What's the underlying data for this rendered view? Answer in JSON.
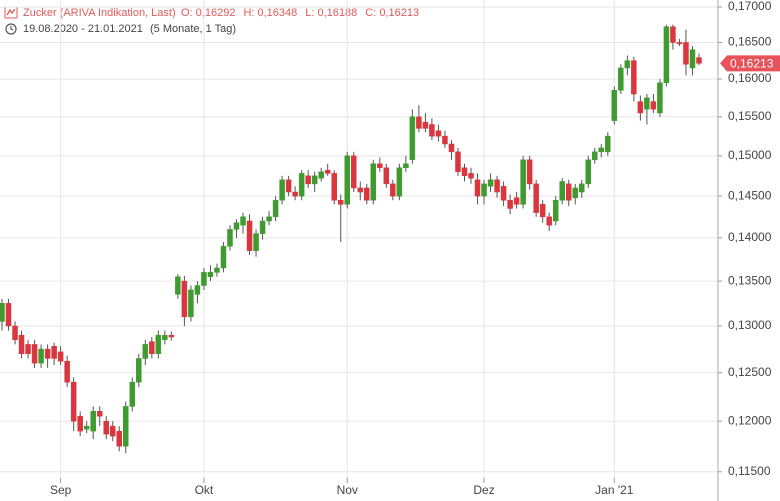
{
  "chart_data": {
    "type": "candlestick",
    "title": "Zucker (ARIVA Indikation, Last)",
    "ohlc_text": [
      "O: 0,16292",
      "H: 0,16348",
      "L: 0,16188",
      "C: 0,16213"
    ],
    "date_range": "19.08.2020 - 21.01.2021",
    "period": "(5 Monate, 1 Tag)",
    "log_scale": true,
    "grid": true,
    "up_color": "#3f9b2f",
    "down_color": "#d9363e",
    "ylim": [
      0.1144,
      0.171
    ],
    "yticks": [
      {
        "value": 0.115,
        "label": "0,11500"
      },
      {
        "value": 0.12,
        "label": "0,12000"
      },
      {
        "value": 0.125,
        "label": "0,12500"
      },
      {
        "value": 0.13,
        "label": "0,13000"
      },
      {
        "value": 0.135,
        "label": "0,13500"
      },
      {
        "value": 0.14,
        "label": "0,14000"
      },
      {
        "value": 0.145,
        "label": "0,14500"
      },
      {
        "value": 0.15,
        "label": "0,15000"
      },
      {
        "value": 0.155,
        "label": "0,15500"
      },
      {
        "value": 0.16,
        "label": "0,16000"
      },
      {
        "value": 0.165,
        "label": "0,16500"
      },
      {
        "value": 0.17,
        "label": "0,17000"
      }
    ],
    "last_price": {
      "value": 0.16213,
      "label": "0,16213"
    },
    "categories": [
      null,
      null,
      null,
      null,
      null,
      null,
      null,
      null,
      null,
      "Sep",
      null,
      null,
      null,
      null,
      null,
      null,
      null,
      null,
      null,
      null,
      null,
      null,
      null,
      null,
      null,
      null,
      null,
      null,
      null,
      null,
      null,
      "Okt",
      null,
      null,
      null,
      null,
      null,
      null,
      null,
      null,
      null,
      null,
      null,
      null,
      null,
      null,
      null,
      null,
      null,
      null,
      null,
      null,
      null,
      "Nov",
      null,
      null,
      null,
      null,
      null,
      null,
      null,
      null,
      null,
      null,
      null,
      null,
      null,
      null,
      null,
      null,
      null,
      null,
      null,
      null,
      "Dez",
      null,
      null,
      null,
      null,
      null,
      null,
      null,
      null,
      null,
      null,
      null,
      null,
      null,
      null,
      null,
      null,
      null,
      null,
      null,
      "Jan '21",
      null,
      null,
      null,
      null,
      null,
      null,
      null,
      null,
      null,
      null,
      null,
      null,
      null
    ],
    "open": [
      0.1305,
      0.1325,
      0.13,
      0.129,
      0.128,
      0.128,
      0.126,
      0.1275,
      0.1278,
      0.1272,
      0.1262,
      0.124,
      0.1205,
      0.1192,
      0.119,
      0.121,
      0.12,
      0.1195,
      0.119,
      0.1175,
      0.1215,
      0.124,
      0.1265,
      0.1283,
      0.127,
      0.1285,
      0.129,
      0.1335,
      0.135,
      0.131,
      0.1335,
      0.1345,
      0.1355,
      0.136,
      0.1365,
      0.139,
      0.141,
      0.1415,
      0.142,
      0.1385,
      0.1405,
      0.142,
      0.1425,
      0.1445,
      0.147,
      0.1455,
      0.145,
      0.1475,
      0.1465,
      0.1472,
      0.1482,
      0.1478,
      0.1445,
      0.144,
      0.15,
      0.146,
      0.146,
      0.1445,
      0.149,
      0.1485,
      0.1465,
      0.145,
      0.1485,
      0.1495,
      0.155,
      0.1543,
      0.154,
      0.1532,
      0.1525,
      0.1515,
      0.1505,
      0.1485,
      0.1478,
      0.147,
      0.145,
      0.1462,
      0.147,
      0.1462,
      0.1445,
      0.1448,
      0.144,
      0.1495,
      0.1465,
      0.144,
      0.1425,
      0.142,
      0.1445,
      0.1465,
      0.1448,
      0.1455,
      0.1465,
      0.1495,
      0.1505,
      0.1505,
      0.1545,
      0.1585,
      0.1615,
      0.1625,
      0.157,
      0.156,
      0.157,
      0.1555,
      0.1595,
      0.1672,
      0.165,
      0.165,
      0.1615,
      0.16292
    ],
    "high": [
      0.133,
      0.133,
      0.1305,
      0.1295,
      0.1285,
      0.1285,
      0.128,
      0.128,
      0.1282,
      0.1278,
      0.1268,
      0.1245,
      0.121,
      0.12,
      0.1215,
      0.1215,
      0.1205,
      0.12,
      0.1195,
      0.122,
      0.1245,
      0.127,
      0.1285,
      0.1288,
      0.1295,
      0.1295,
      0.1294,
      0.1358,
      0.1356,
      0.1345,
      0.135,
      0.1365,
      0.1368,
      0.137,
      0.1395,
      0.1415,
      0.1422,
      0.143,
      0.1428,
      0.141,
      0.1425,
      0.1432,
      0.145,
      0.1475,
      0.1475,
      0.1462,
      0.1482,
      0.1482,
      0.148,
      0.1485,
      0.149,
      0.1482,
      0.1452,
      0.1505,
      0.1505,
      0.1468,
      0.1465,
      0.1495,
      0.1498,
      0.149,
      0.147,
      0.149,
      0.15,
      0.156,
      0.1565,
      0.1555,
      0.1548,
      0.154,
      0.1532,
      0.152,
      0.151,
      0.149,
      0.1485,
      0.1478,
      0.147,
      0.1478,
      0.1475,
      0.1468,
      0.1452,
      0.1455,
      0.15,
      0.15,
      0.147,
      0.1445,
      0.143,
      0.145,
      0.1472,
      0.147,
      0.1465,
      0.147,
      0.15,
      0.151,
      0.1515,
      0.153,
      0.159,
      0.162,
      0.1632,
      0.163,
      0.1578,
      0.158,
      0.158,
      0.16,
      0.1675,
      0.1675,
      0.1655,
      0.1668,
      0.1645,
      0.16348
    ],
    "low": [
      0.1295,
      0.1295,
      0.128,
      0.1265,
      0.1265,
      0.1255,
      0.1255,
      0.1255,
      0.1258,
      0.1258,
      0.1235,
      0.119,
      0.1185,
      0.1188,
      0.1182,
      0.1195,
      0.1182,
      0.118,
      0.117,
      0.1168,
      0.121,
      0.1235,
      0.1258,
      0.1265,
      0.1265,
      0.128,
      0.1284,
      0.133,
      0.13,
      0.1305,
      0.1325,
      0.134,
      0.135,
      0.1355,
      0.136,
      0.1385,
      0.14,
      0.1405,
      0.138,
      0.1378,
      0.1398,
      0.1415,
      0.142,
      0.144,
      0.145,
      0.1445,
      0.1445,
      0.146,
      0.1455,
      0.1468,
      0.1475,
      0.144,
      0.1395,
      0.1435,
      0.1455,
      0.1445,
      0.144,
      0.144,
      0.148,
      0.146,
      0.1445,
      0.1445,
      0.148,
      0.149,
      0.153,
      0.153,
      0.152,
      0.1518,
      0.151,
      0.1495,
      0.1475,
      0.1468,
      0.1465,
      0.144,
      0.144,
      0.1455,
      0.1448,
      0.1438,
      0.1428,
      0.1435,
      0.1435,
      0.1458,
      0.1425,
      0.1418,
      0.1408,
      0.1415,
      0.144,
      0.1438,
      0.144,
      0.1448,
      0.146,
      0.149,
      0.1498,
      0.15,
      0.154,
      0.158,
      0.1605,
      0.157,
      0.1545,
      0.154,
      0.1555,
      0.155,
      0.159,
      0.164,
      0.1645,
      0.1605,
      0.1605,
      0.16188
    ],
    "close": [
      0.1325,
      0.13,
      0.1285,
      0.127,
      0.127,
      0.126,
      0.1275,
      0.1265,
      0.1265,
      0.1262,
      0.124,
      0.12,
      0.119,
      0.1195,
      0.121,
      0.1205,
      0.1187,
      0.1185,
      0.1175,
      0.1215,
      0.124,
      0.1265,
      0.128,
      0.127,
      0.129,
      0.129,
      0.1288,
      0.1355,
      0.131,
      0.134,
      0.1345,
      0.136,
      0.136,
      0.1365,
      0.139,
      0.141,
      0.1418,
      0.1425,
      0.1385,
      0.1405,
      0.142,
      0.1425,
      0.1445,
      0.147,
      0.1455,
      0.145,
      0.1478,
      0.1465,
      0.1475,
      0.148,
      0.1478,
      0.1445,
      0.144,
      0.15,
      0.146,
      0.1455,
      0.1445,
      0.149,
      0.1485,
      0.1465,
      0.145,
      0.1485,
      0.149,
      0.155,
      0.1535,
      0.1535,
      0.1525,
      0.1525,
      0.1515,
      0.1505,
      0.148,
      0.1475,
      0.1472,
      0.145,
      0.1465,
      0.147,
      0.1455,
      0.1445,
      0.1435,
      0.144,
      0.1495,
      0.1465,
      0.143,
      0.1425,
      0.1415,
      0.1445,
      0.1468,
      0.1445,
      0.146,
      0.1465,
      0.1495,
      0.1505,
      0.151,
      0.1525,
      0.1585,
      0.1615,
      0.1625,
      0.158,
      0.1555,
      0.1575,
      0.156,
      0.1595,
      0.1672,
      0.165,
      0.1648,
      0.162,
      0.164,
      0.16213
    ]
  }
}
